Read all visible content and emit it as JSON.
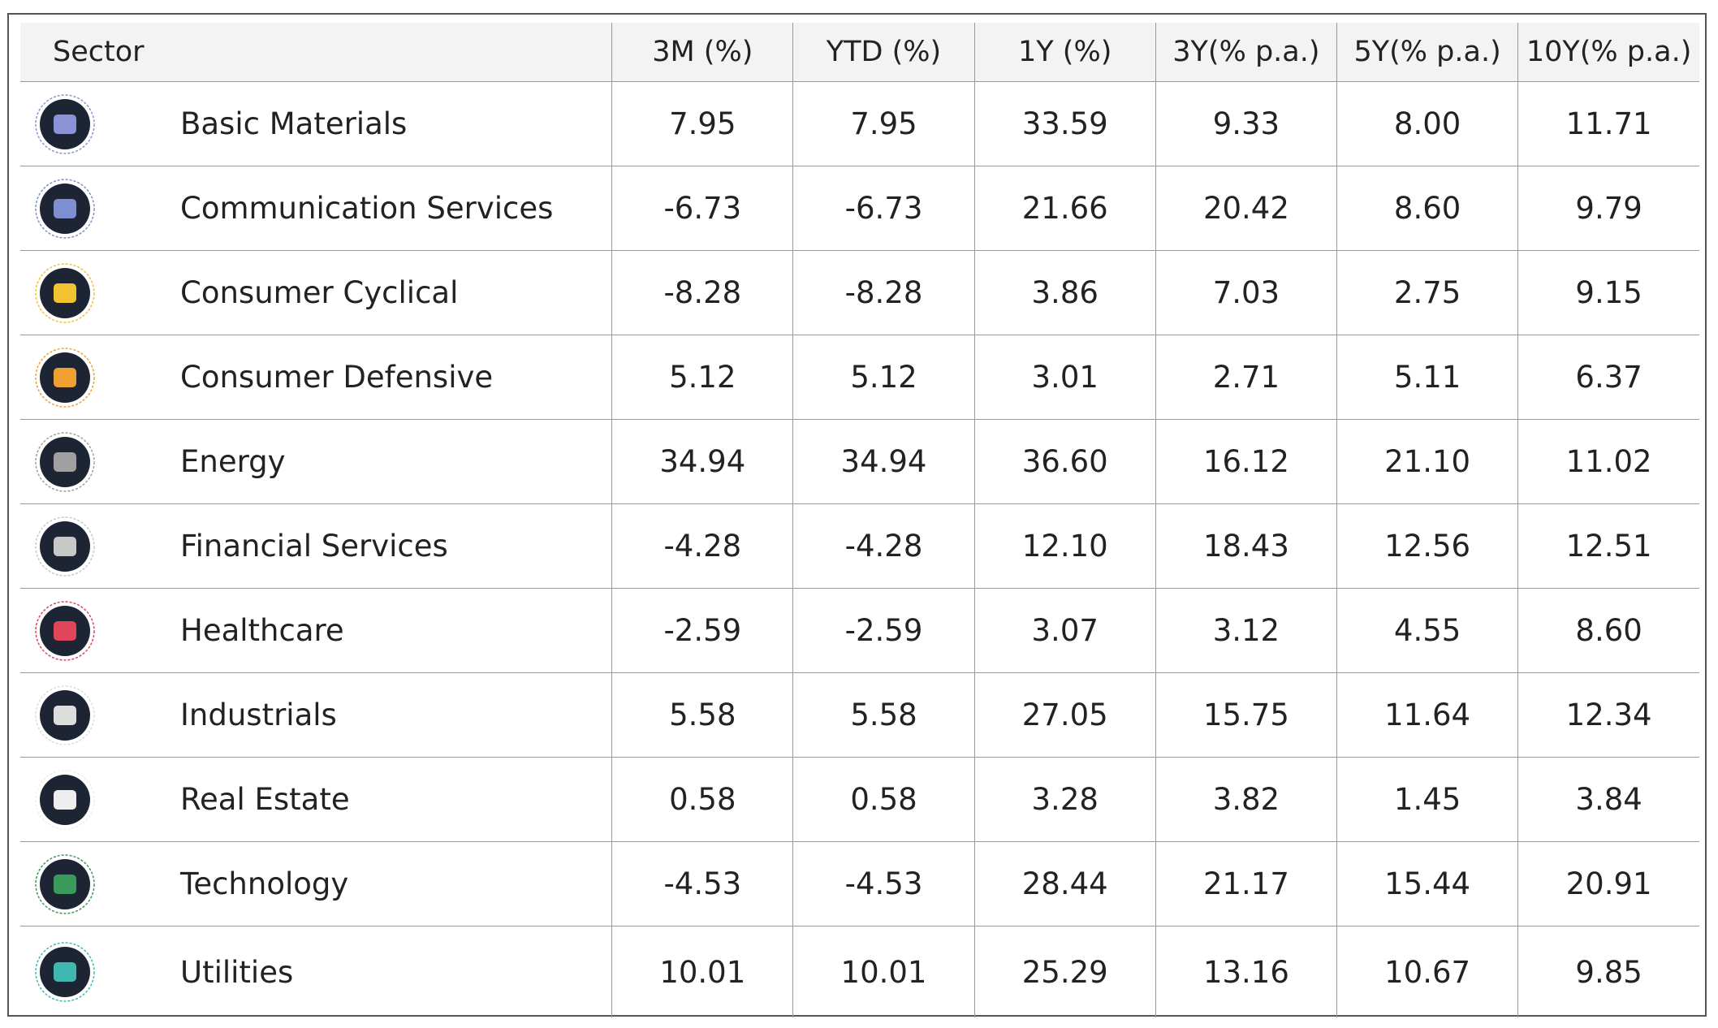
{
  "table": {
    "header": [
      "Sector",
      "3M (%)",
      "YTD (%)",
      "1Y (%)",
      "3Y(% p.a.)",
      "5Y(% p.a.)",
      "10Y(% p.a.)"
    ],
    "rows": [
      [
        "Basic Materials",
        "7.95",
        "7.95",
        "33.59",
        "9.33",
        "8.00",
        "11.71"
      ],
      [
        "Communication Services",
        "-6.73",
        "-6.73",
        "21.66",
        "20.42",
        "8.60",
        "9.79"
      ],
      [
        "Consumer Cyclical",
        "-8.28",
        "-8.28",
        "3.86",
        "7.03",
        "2.75",
        "9.15"
      ],
      [
        "Consumer Defensive",
        "5.12",
        "5.12",
        "3.01",
        "2.71",
        "5.11",
        "6.37"
      ],
      [
        "Energy",
        "34.94",
        "34.94",
        "36.60",
        "16.12",
        "21.10",
        "11.02"
      ],
      [
        "Financial Services",
        "-4.28",
        "-4.28",
        "12.10",
        "18.43",
        "12.56",
        "12.51"
      ],
      [
        "Healthcare",
        "-2.59",
        "-2.59",
        "3.07",
        "3.12",
        "4.55",
        "8.60"
      ],
      [
        "Industrials",
        "5.58",
        "5.58",
        "27.05",
        "15.75",
        "11.64",
        "12.34"
      ],
      [
        "Real Estate",
        "0.58",
        "0.58",
        "3.28",
        "3.82",
        "1.45",
        "3.84"
      ],
      [
        "Technology",
        "-4.53",
        "-4.53",
        "28.44",
        "21.17",
        "15.44",
        "20.91"
      ],
      [
        "Utilities",
        "10.01",
        "10.01",
        "25.29",
        "13.16",
        "10.67",
        "9.85"
      ]
    ]
  }
}
